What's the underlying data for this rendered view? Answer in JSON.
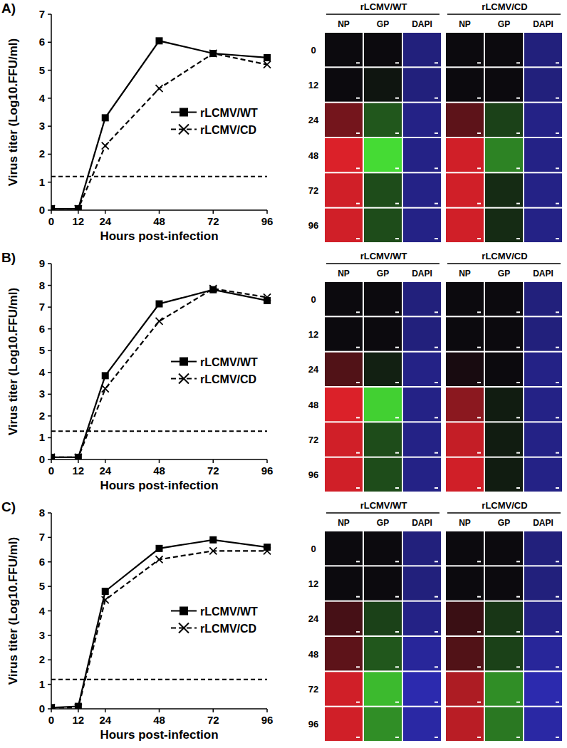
{
  "chart_data": [
    {
      "panel": "A)",
      "type": "line",
      "x_label": "Hours post-infection",
      "y_label": "Virus titer (Log10.FFU/ml)",
      "x": [
        0,
        12,
        24,
        48,
        72,
        96
      ],
      "xlim": [
        0,
        96
      ],
      "xticks": [
        0,
        12,
        24,
        48,
        72,
        96
      ],
      "ylim": [
        0,
        7
      ],
      "yticks": [
        0,
        1,
        2,
        3,
        4,
        5,
        6,
        7
      ],
      "detection_limit": 1.2,
      "legend": "right",
      "series": [
        {
          "name": "rLCMV/WT",
          "color": "#000000",
          "marker": "square",
          "line_style": "solid",
          "values": [
            0.05,
            0.05,
            3.3,
            6.05,
            5.6,
            5.45
          ]
        },
        {
          "name": "rLCMV/CD",
          "color": "#000000",
          "marker": "x",
          "line_style": "dashed",
          "values": [
            0.05,
            0.05,
            2.3,
            4.35,
            5.6,
            5.2
          ]
        }
      ],
      "image_grid": {
        "groups": [
          "rLCMV/WT",
          "rLCMV/CD"
        ],
        "channels": [
          "NP",
          "GP",
          "DAPI"
        ],
        "rows": [
          "0",
          "12",
          "24",
          "48",
          "72",
          "96"
        ]
      }
    },
    {
      "panel": "B)",
      "type": "line",
      "x_label": "Hours post-infection",
      "y_label": "Virus titer (Log10.FFU/ml)",
      "x": [
        0,
        12,
        24,
        48,
        72,
        96
      ],
      "xlim": [
        0,
        96
      ],
      "xticks": [
        0,
        12,
        24,
        48,
        72,
        96
      ],
      "ylim": [
        0,
        9
      ],
      "yticks": [
        0,
        1,
        2,
        3,
        4,
        5,
        6,
        7,
        8,
        9
      ],
      "detection_limit": 1.3,
      "legend": "right",
      "series": [
        {
          "name": "rLCMV/WT",
          "color": "#000000",
          "marker": "square",
          "line_style": "solid",
          "values": [
            0.1,
            0.1,
            3.85,
            7.15,
            7.8,
            7.3
          ]
        },
        {
          "name": "rLCMV/CD",
          "color": "#000000",
          "marker": "x",
          "line_style": "dashed",
          "values": [
            0.1,
            0.1,
            3.25,
            6.35,
            7.85,
            7.45
          ]
        }
      ],
      "image_grid": {
        "groups": [
          "rLCMV/WT",
          "rLCMV/CD"
        ],
        "channels": [
          "NP",
          "GP",
          "DAPI"
        ],
        "rows": [
          "0",
          "12",
          "24",
          "48",
          "72",
          "96"
        ]
      }
    },
    {
      "panel": "C)",
      "type": "line",
      "x_label": "Hours post-infection",
      "y_label": "Virus titer (Log10.FFU/ml)",
      "x": [
        0,
        12,
        24,
        48,
        72,
        96
      ],
      "xlim": [
        0,
        96
      ],
      "xticks": [
        0,
        12,
        24,
        48,
        72,
        96
      ],
      "ylim": [
        0,
        8
      ],
      "yticks": [
        0,
        1,
        2,
        3,
        4,
        5,
        6,
        7,
        8
      ],
      "detection_limit": 1.2,
      "legend": "right",
      "series": [
        {
          "name": "rLCMV/WT",
          "color": "#000000",
          "marker": "square",
          "line_style": "solid",
          "values": [
            0.05,
            0.1,
            4.8,
            6.55,
            6.9,
            6.6
          ]
        },
        {
          "name": "rLCMV/CD",
          "color": "#000000",
          "marker": "x",
          "line_style": "dashed",
          "values": [
            0.05,
            0.05,
            4.45,
            6.1,
            6.45,
            6.45
          ]
        }
      ],
      "image_grid": {
        "groups": [
          "rLCMV/WT",
          "rLCMV/CD"
        ],
        "channels": [
          "NP",
          "GP",
          "DAPI"
        ],
        "rows": [
          "0",
          "12",
          "24",
          "48",
          "72",
          "96"
        ]
      }
    }
  ]
}
